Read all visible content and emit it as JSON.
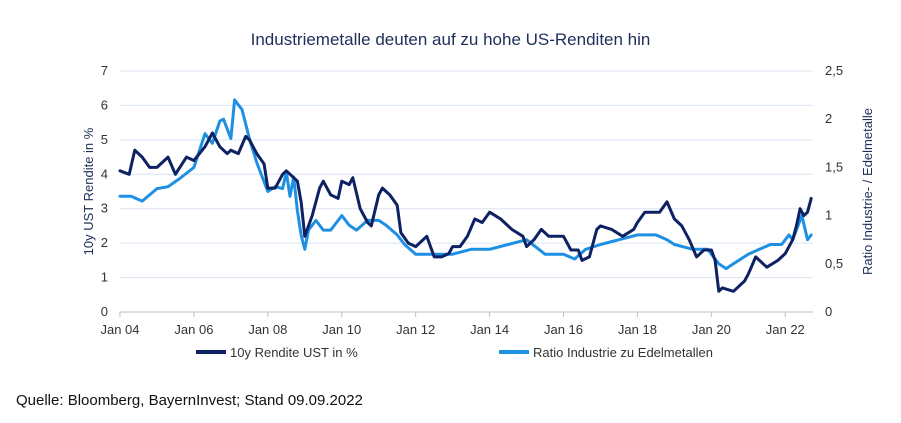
{
  "chart_data": {
    "type": "line",
    "title": "Industriemetalle deuten auf zu hohe US-Renditen hin",
    "ylabel_left": "10y UST Rendite in %",
    "ylabel_right": "Ratio Industrie- / Edelmetalle",
    "ylim_left": [
      0,
      7
    ],
    "ylim_right": [
      0,
      2.5
    ],
    "y_ticks_left": [
      "0",
      "1",
      "2",
      "3",
      "4",
      "5",
      "6",
      "7"
    ],
    "y_ticks_right": [
      "0",
      "0,5",
      "1",
      "1,5",
      "2",
      "2,5"
    ],
    "x_tick_labels": [
      "Jan 04",
      "Jan 06",
      "Jan 08",
      "Jan 10",
      "Jan 12",
      "Jan 14",
      "Jan 16",
      "Jan 18",
      "Jan 20",
      "Jan 22"
    ],
    "xlim": [
      2004.0,
      2022.75
    ],
    "grid": "horizontal",
    "legend_position": "bottom",
    "series": [
      {
        "name": "10y Rendite UST in %",
        "axis": "left",
        "color": "#0d2163",
        "x": [
          2004.0,
          2004.25,
          2004.4,
          2004.6,
          2004.8,
          2005.0,
          2005.3,
          2005.5,
          2005.8,
          2006.0,
          2006.3,
          2006.5,
          2006.7,
          2006.9,
          2007.0,
          2007.2,
          2007.4,
          2007.5,
          2007.7,
          2007.9,
          2008.0,
          2008.2,
          2008.4,
          2008.5,
          2008.7,
          2008.8,
          2008.9,
          2009.0,
          2009.2,
          2009.4,
          2009.5,
          2009.7,
          2009.9,
          2010.0,
          2010.2,
          2010.3,
          2010.5,
          2010.7,
          2010.8,
          2011.0,
          2011.1,
          2011.3,
          2011.5,
          2011.6,
          2011.8,
          2012.0,
          2012.3,
          2012.5,
          2012.7,
          2012.9,
          2013.0,
          2013.2,
          2013.4,
          2013.6,
          2013.8,
          2014.0,
          2014.3,
          2014.6,
          2014.9,
          2015.0,
          2015.2,
          2015.4,
          2015.6,
          2015.8,
          2016.0,
          2016.2,
          2016.4,
          2016.5,
          2016.7,
          2016.9,
          2017.0,
          2017.3,
          2017.6,
          2017.9,
          2018.0,
          2018.2,
          2018.4,
          2018.6,
          2018.8,
          2019.0,
          2019.2,
          2019.4,
          2019.6,
          2019.8,
          2020.0,
          2020.1,
          2020.2,
          2020.3,
          2020.6,
          2020.9,
          2021.0,
          2021.2,
          2021.5,
          2021.8,
          2022.0,
          2022.2,
          2022.3,
          2022.4,
          2022.5,
          2022.6,
          2022.7
        ],
        "values": [
          4.1,
          4.0,
          4.7,
          4.5,
          4.2,
          4.2,
          4.5,
          4.0,
          4.5,
          4.4,
          4.8,
          5.2,
          4.8,
          4.6,
          4.7,
          4.6,
          5.1,
          5.0,
          4.6,
          4.3,
          3.6,
          3.6,
          4.0,
          4.1,
          3.9,
          3.8,
          3.2,
          2.2,
          2.8,
          3.6,
          3.8,
          3.4,
          3.3,
          3.8,
          3.7,
          3.9,
          3.0,
          2.6,
          2.5,
          3.4,
          3.6,
          3.4,
          3.1,
          2.3,
          2.0,
          1.9,
          2.2,
          1.6,
          1.6,
          1.7,
          1.9,
          1.9,
          2.2,
          2.7,
          2.6,
          2.9,
          2.7,
          2.4,
          2.2,
          1.9,
          2.1,
          2.4,
          2.2,
          2.2,
          2.2,
          1.8,
          1.8,
          1.5,
          1.6,
          2.4,
          2.5,
          2.4,
          2.2,
          2.4,
          2.6,
          2.9,
          2.9,
          2.9,
          3.2,
          2.7,
          2.5,
          2.1,
          1.6,
          1.8,
          1.8,
          1.5,
          0.6,
          0.7,
          0.6,
          0.9,
          1.1,
          1.6,
          1.3,
          1.5,
          1.7,
          2.1,
          2.5,
          3.0,
          2.8,
          2.9,
          3.3
        ]
      },
      {
        "name": "Ratio Industrie zu Edelmetallen",
        "axis": "right",
        "color": "#1e90e3",
        "x": [
          2004.0,
          2004.3,
          2004.6,
          2005.0,
          2005.3,
          2005.6,
          2006.0,
          2006.3,
          2006.5,
          2006.7,
          2006.8,
          2007.0,
          2007.1,
          2007.3,
          2007.5,
          2007.7,
          2007.9,
          2008.0,
          2008.2,
          2008.4,
          2008.5,
          2008.6,
          2008.7,
          2008.8,
          2008.9,
          2009.0,
          2009.1,
          2009.3,
          2009.5,
          2009.7,
          2010.0,
          2010.2,
          2010.4,
          2010.7,
          2011.0,
          2011.2,
          2011.5,
          2011.7,
          2012.0,
          2012.5,
          2013.0,
          2013.5,
          2014.0,
          2014.5,
          2015.0,
          2015.5,
          2016.0,
          2016.3,
          2016.6,
          2017.0,
          2017.5,
          2018.0,
          2018.5,
          2018.8,
          2019.0,
          2019.5,
          2019.9,
          2020.0,
          2020.2,
          2020.4,
          2020.6,
          2020.8,
          2021.0,
          2021.3,
          2021.6,
          2021.9,
          2022.0,
          2022.1,
          2022.2,
          2022.3,
          2022.45,
          2022.6,
          2022.7
        ],
        "values": [
          1.2,
          1.2,
          1.15,
          1.28,
          1.3,
          1.38,
          1.5,
          1.85,
          1.75,
          1.98,
          2.0,
          1.8,
          2.2,
          2.1,
          1.8,
          1.55,
          1.35,
          1.25,
          1.3,
          1.28,
          1.45,
          1.2,
          1.4,
          1.05,
          0.8,
          0.65,
          0.85,
          0.95,
          0.85,
          0.85,
          1.0,
          0.9,
          0.85,
          0.95,
          0.95,
          0.9,
          0.8,
          0.7,
          0.6,
          0.6,
          0.6,
          0.65,
          0.65,
          0.7,
          0.75,
          0.6,
          0.6,
          0.55,
          0.65,
          0.7,
          0.75,
          0.8,
          0.8,
          0.75,
          0.7,
          0.65,
          0.65,
          0.6,
          0.5,
          0.45,
          0.5,
          0.55,
          0.6,
          0.65,
          0.7,
          0.7,
          0.75,
          0.8,
          0.75,
          0.85,
          1.0,
          0.75,
          0.8
        ]
      }
    ]
  },
  "footer": {
    "source": "Quelle: Bloomberg, BayernInvest; Stand 09.09.2022"
  }
}
